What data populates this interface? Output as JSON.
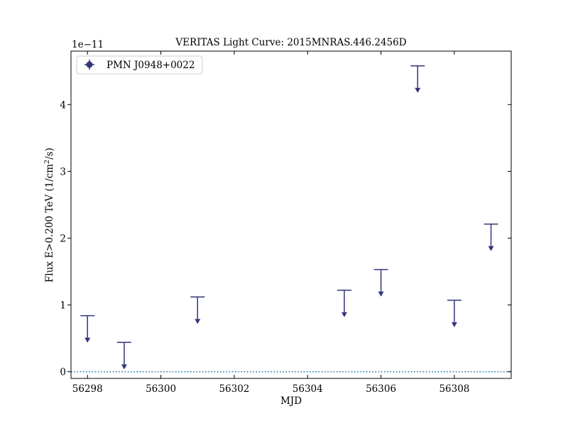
{
  "chart_data": {
    "type": "scatter",
    "title": "VERITAS Light Curve: 2015MNRAS.446.2456D",
    "xlabel": "MJD",
    "ylabel_main": "Flux E>0.200 TeV (1/cm",
    "ylabel_sup": "2",
    "ylabel_end": "/s)",
    "y_offset_text": "1e−11",
    "y_scale": 1e-11,
    "xlim": [
      56297.55,
      56309.55
    ],
    "ylim": [
      -1e-12,
      4.8e-11
    ],
    "xticks": [
      56298,
      56300,
      56302,
      56304,
      56306,
      56308
    ],
    "yticks": [
      0,
      1,
      2,
      3,
      4
    ],
    "grid": false,
    "legend_position": "top-left",
    "zero_line": {
      "y": 0,
      "style": "dotted",
      "color": "#1f77b4"
    },
    "series": [
      {
        "name": "PMN J0948+0022",
        "color": "#33357a",
        "marker": "upper-limit",
        "x": [
          56298,
          56299,
          56301,
          56305,
          56306,
          56307,
          56308,
          56309
        ],
        "upper_limits": [
          8.4e-12,
          4.4e-12,
          1.12e-11,
          1.22e-11,
          1.53e-11,
          4.58e-11,
          1.07e-11,
          2.21e-11
        ]
      }
    ]
  }
}
